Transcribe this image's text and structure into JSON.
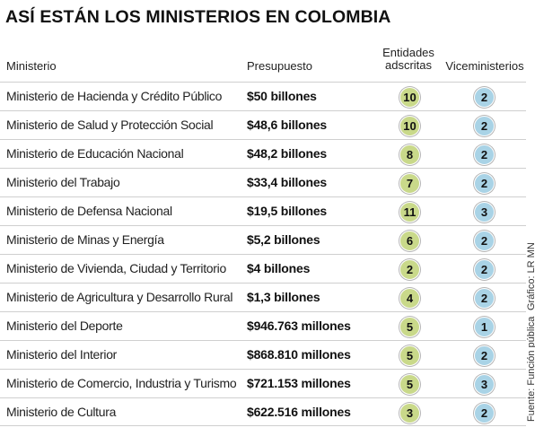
{
  "title": "ASÍ ESTÁN LOS MINISTERIOS EN COLOMBIA",
  "headers": {
    "ministerio": "Ministerio",
    "presupuesto": "Presupuesto",
    "entidades_line1": "Entidades",
    "entidades_line2": "adscritas",
    "viceministerios": "Viceministerios"
  },
  "colors": {
    "entidades_badge": "#c9d98a",
    "viceministerios_badge": "#a9d3e6"
  },
  "rows": [
    {
      "ministerio": "Ministerio de Hacienda y Crédito Público",
      "presupuesto": "$50 billones",
      "entidades": "10",
      "viceministerios": "2"
    },
    {
      "ministerio": "Ministerio de Salud y Protección Social",
      "presupuesto": "$48,6 billones",
      "entidades": "10",
      "viceministerios": "2"
    },
    {
      "ministerio": "Ministerio de Educación Nacional",
      "presupuesto": "$48,2 billones",
      "entidades": "8",
      "viceministerios": "2"
    },
    {
      "ministerio": "Ministerio del Trabajo",
      "presupuesto": "$33,4 billones",
      "entidades": "7",
      "viceministerios": "2"
    },
    {
      "ministerio": "Ministerio de Defensa Nacional",
      "presupuesto": "$19,5 billones",
      "entidades": "11",
      "viceministerios": "3"
    },
    {
      "ministerio": "Ministerio de Minas y Energía",
      "presupuesto": "$5,2 billones",
      "entidades": "6",
      "viceministerios": "2"
    },
    {
      "ministerio": "Ministerio de Vivienda, Ciudad y Territorio",
      "presupuesto": "$4 billones",
      "entidades": "2",
      "viceministerios": "2"
    },
    {
      "ministerio": "Ministerio de Agricultura y Desarrollo Rural",
      "presupuesto": "$1,3 billones",
      "entidades": "4",
      "viceministerios": "2"
    },
    {
      "ministerio": "Ministerio del Deporte",
      "presupuesto": "$946.763 millones",
      "entidades": "5",
      "viceministerios": "1"
    },
    {
      "ministerio": "Ministerio del Interior",
      "presupuesto": "$868.810 millones",
      "entidades": "5",
      "viceministerios": "2"
    },
    {
      "ministerio": "Ministerio de Comercio, Industria y Turismo",
      "presupuesto": "$721.153 millones",
      "entidades": "5",
      "viceministerios": "3"
    },
    {
      "ministerio": "Ministerio de Cultura",
      "presupuesto": "$622.516 millones",
      "entidades": "3",
      "viceministerios": "2"
    }
  ],
  "fuente": "Fuente: Función pública",
  "grafico": "Gráfico: LR MN"
}
